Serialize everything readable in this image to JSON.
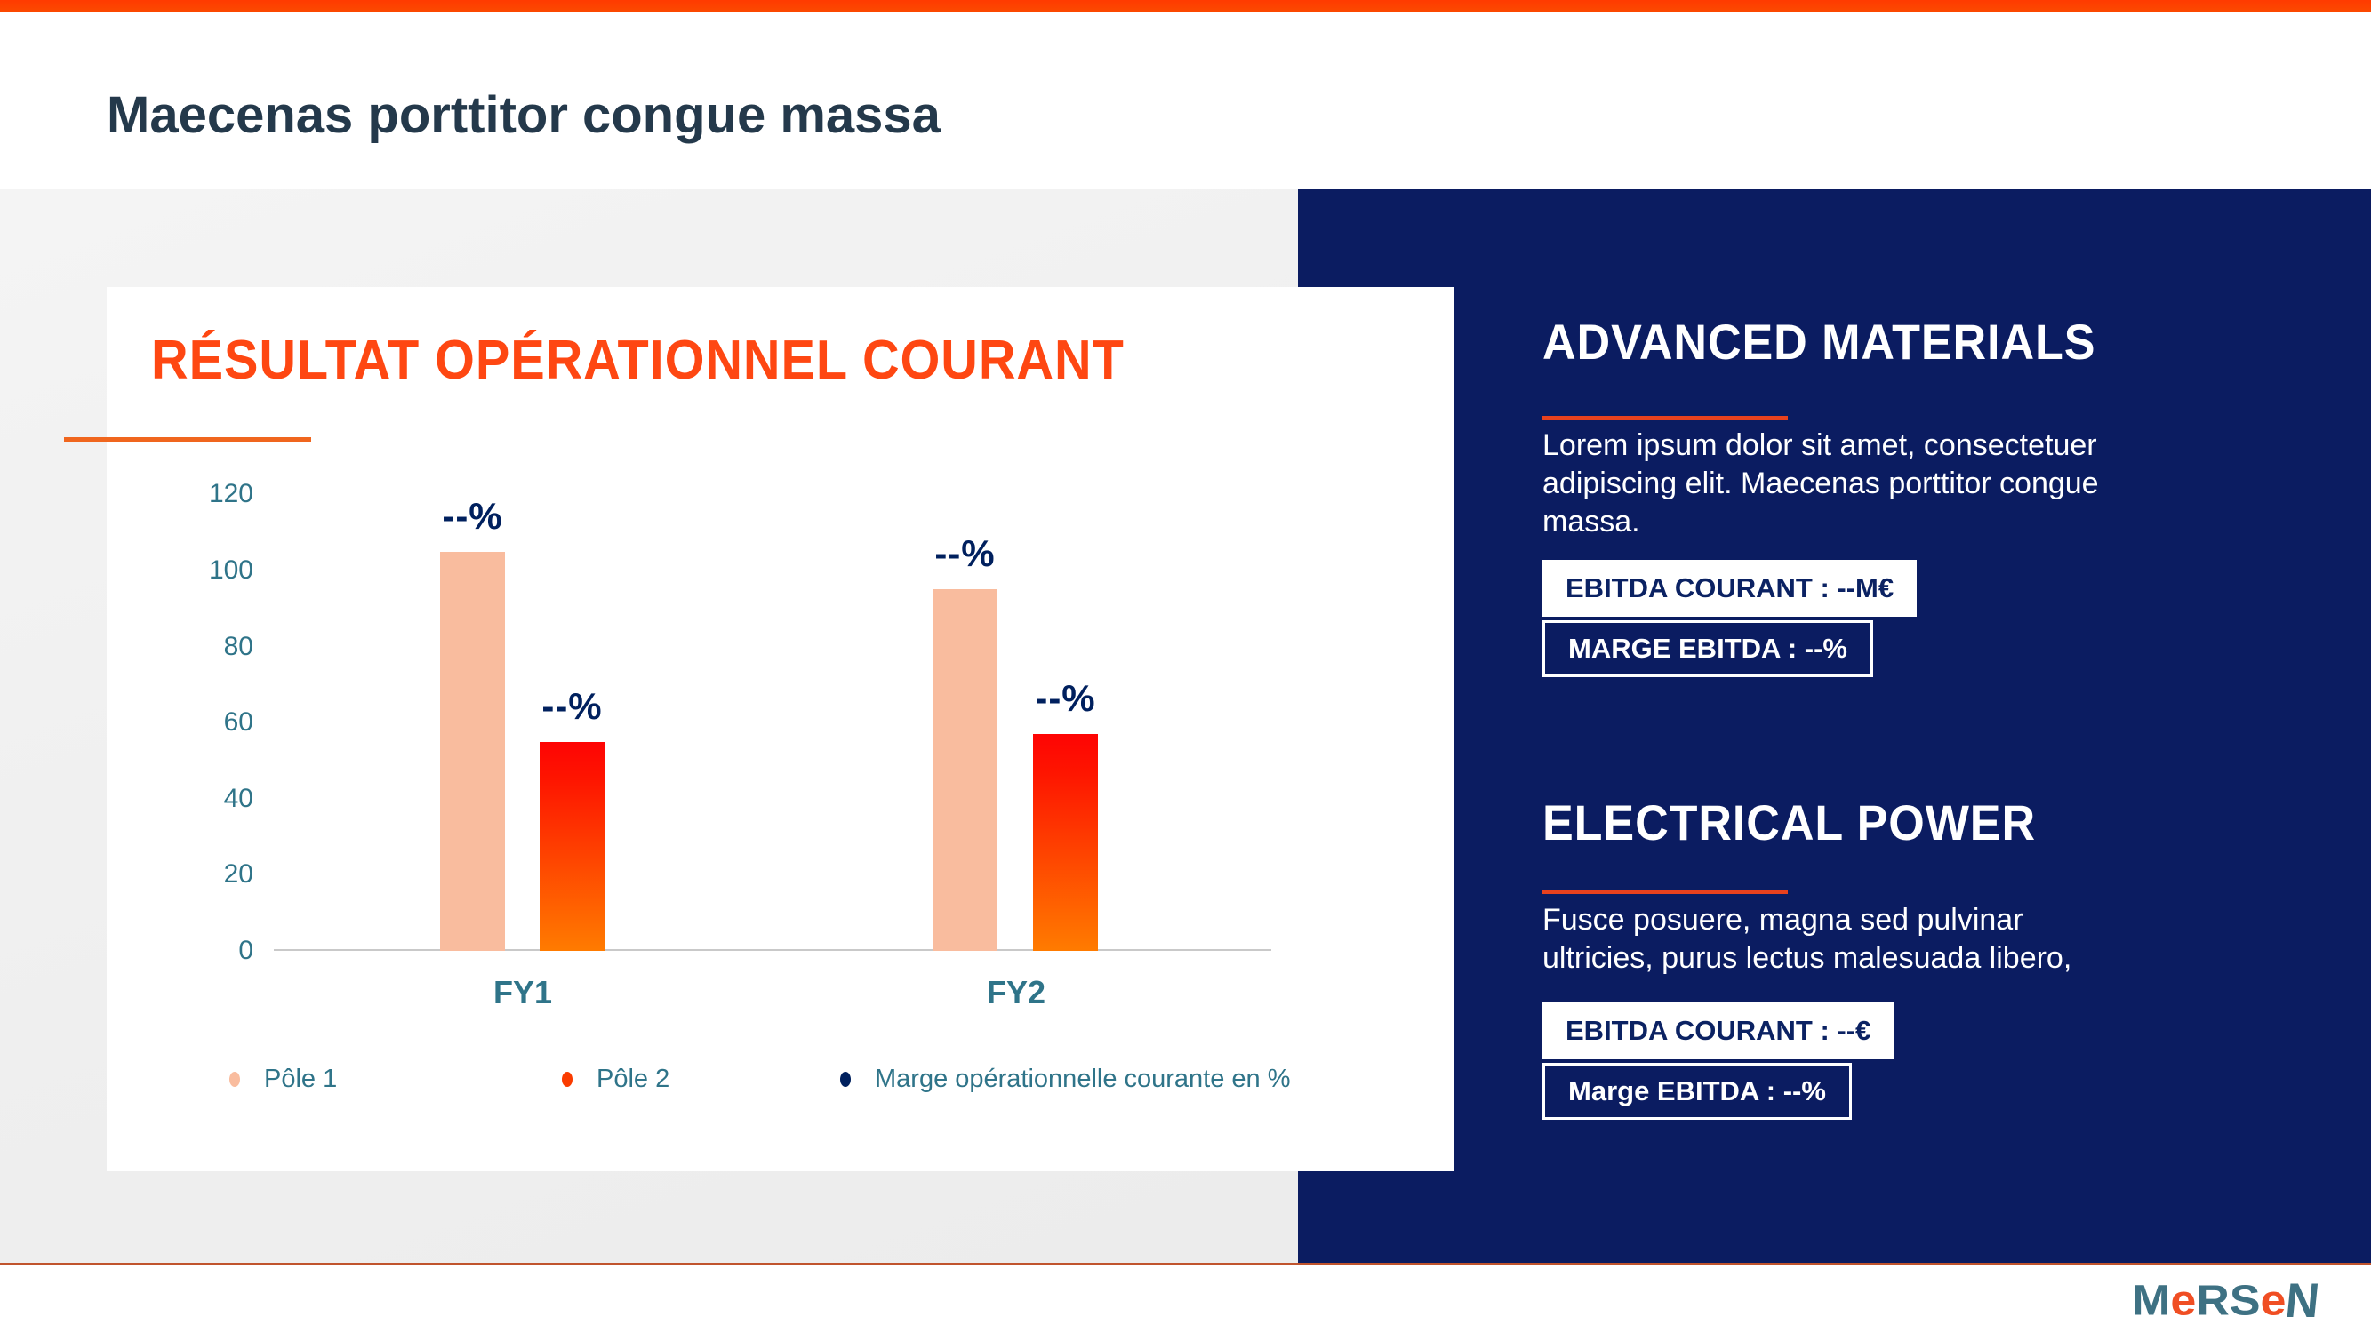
{
  "slide": {
    "title": "Maecenas porttitor congue massa"
  },
  "chart_data": {
    "type": "bar",
    "title": "RÉSULTAT OPÉRATIONNEL COURANT",
    "categories": [
      "FY1",
      "FY2"
    ],
    "series": [
      {
        "name": "Pôle 1",
        "legend_color": "#f9bc9e",
        "values": [
          105,
          55
        ],
        "note": "values listed per this category group order below"
      },
      {
        "name": "Pôle 2",
        "legend_color": "#fa3c00",
        "values": [
          95,
          57
        ]
      },
      {
        "name": "Marge opérationnelle courante en %",
        "legend_color": "#00205e",
        "values": []
      }
    ],
    "groups": [
      {
        "category": "FY1",
        "pole1": 105,
        "pole2": 55,
        "pole1_label": "--%",
        "pole2_label": "--%"
      },
      {
        "category": "FY2",
        "pole1": 95,
        "pole2": 57,
        "pole1_label": "--%",
        "pole2_label": "--%"
      }
    ],
    "ylim": [
      0,
      120
    ],
    "yticks": [
      0,
      20,
      40,
      60,
      80,
      100,
      120
    ],
    "grid": false,
    "legend_position": "bottom",
    "bar_colors": {
      "pole1": "#f9bc9e",
      "pole2_top": "#fe0404",
      "pole2_bottom": "#ff7b00"
    }
  },
  "right_panel": {
    "sections": [
      {
        "heading": "ADVANCED MATERIALS",
        "body": "Lorem ipsum dolor sit amet, consectetuer\nadipiscing elit. Maecenas porttitor congue\nmassa.",
        "badges": [
          {
            "label": "EBITDA COURANT : --M€",
            "style": "light"
          },
          {
            "label": "MARGE EBITDA : --%",
            "style": "dark"
          }
        ]
      },
      {
        "heading": "ELECTRICAL POWER",
        "body": "Fusce posuere, magna sed pulvinar\nultricies, purus lectus malesuada libero,",
        "badges": [
          {
            "label": "EBITDA COURANT : --€",
            "style": "light"
          },
          {
            "label": "Marge EBITDA : --%",
            "style": "dark"
          }
        ]
      }
    ]
  },
  "footer": {
    "logo_letters": [
      {
        "ch": "M",
        "color": "#3e7183"
      },
      {
        "ch": "e",
        "color": "#f04e23"
      },
      {
        "ch": "R",
        "color": "#3e7183"
      },
      {
        "ch": "S",
        "color": "#3e7183"
      },
      {
        "ch": "e",
        "color": "#f04e23"
      },
      {
        "ch": "N",
        "color": "#3e7183"
      }
    ]
  },
  "colors": {
    "accent_top_bar": "#fe3c00",
    "panel_navy": "#0b1c61",
    "chart_title_orange": "#fe4712",
    "underline_orange": "#f0661e",
    "panel_underline_red": "#e8411e",
    "teal_text": "#2f7489",
    "navy_label": "#00205e",
    "bottom_rule": "#c0542d",
    "left_background": "#f0f0f0"
  }
}
